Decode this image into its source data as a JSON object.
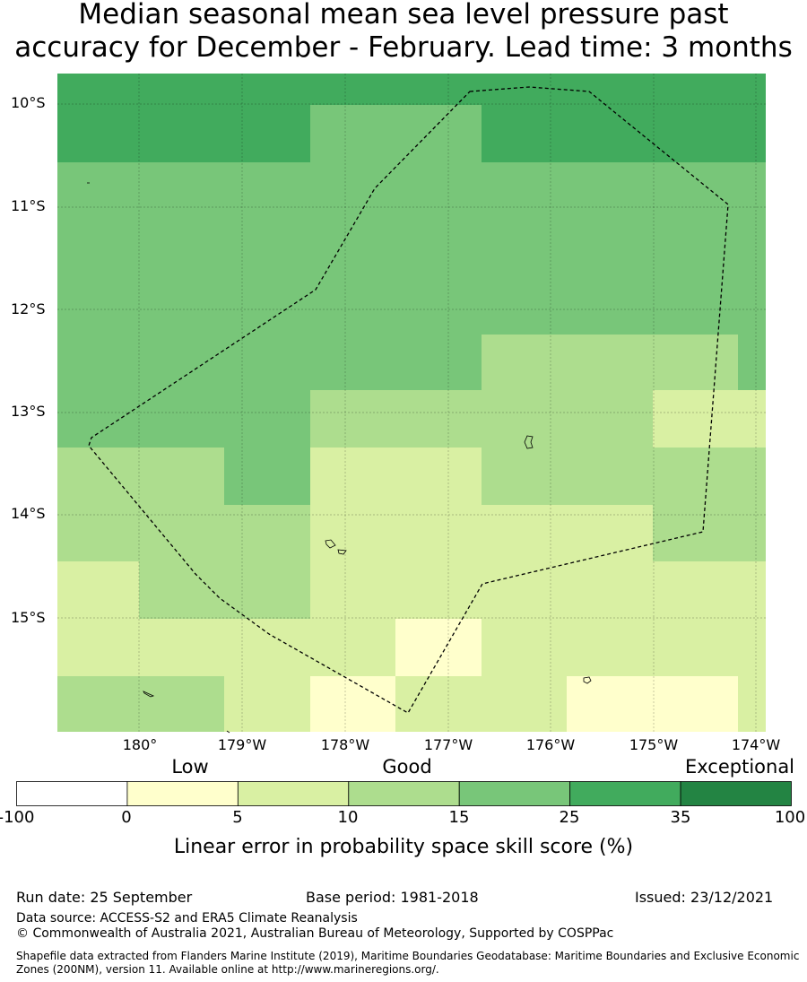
{
  "title": {
    "line1": "Median seasonal mean sea level pressure past",
    "line2": "accuracy for December - February. Lead time: 3 months"
  },
  "map": {
    "lat_ticks": [
      "10°S",
      "11°S",
      "12°S",
      "13°S",
      "14°S",
      "15°S"
    ],
    "lon_ticks": [
      "180°",
      "179°W",
      "178°W",
      "177°W",
      "176°W",
      "175°W",
      "174°W"
    ],
    "colors": [
      "#ffffff",
      "#ffffcc",
      "#d9f0a3",
      "#addd8e",
      "#78c679",
      "#41ab5d",
      "#238443"
    ]
  },
  "legend": {
    "categories": [
      "Low",
      "Good",
      "Exceptional"
    ],
    "ticks": [
      "-100",
      "0",
      "5",
      "10",
      "15",
      "25",
      "35",
      "100"
    ],
    "title": "Linear error in probability space skill score (%)"
  },
  "footer": {
    "run_date": "Run date: 25 September",
    "base_period": "Base period: 1981-2018",
    "issued": "Issued: 23/12/2021",
    "data_source": "Data source: ACCESS-S2 and ERA5 Climate Reanalysis",
    "copyright": "© Commonwealth of Australia 2021, Australian Bureau of Meteorology, Supported by COSPPac",
    "shapefile": "Shapefile data extracted from Flanders Marine Institute (2019), Maritime Boundaries Geodatabase: Maritime Boundaries and Exclusive Economic Zones (200NM), version 11. Available online at http://www.marineregions.org/."
  }
}
